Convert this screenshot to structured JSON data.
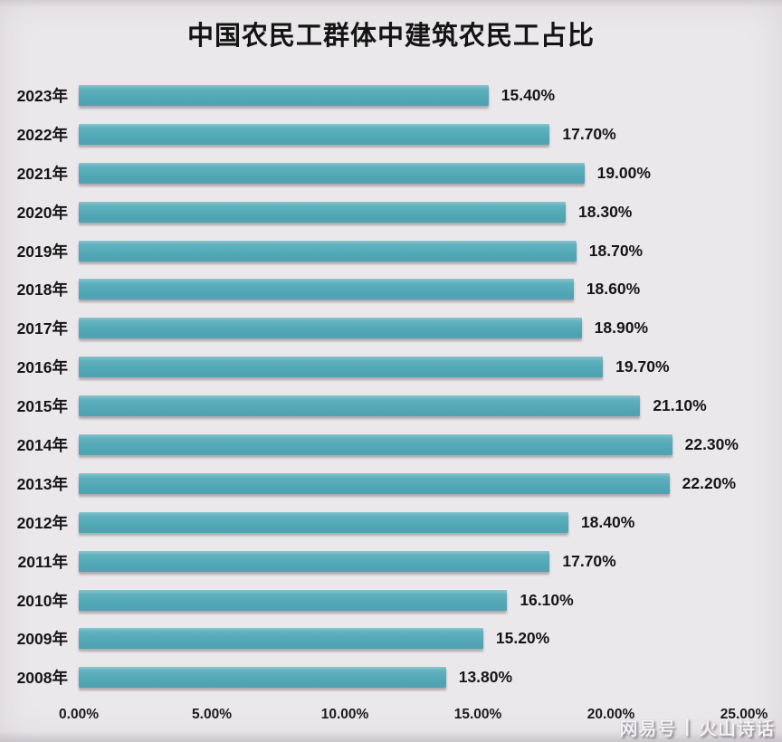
{
  "title": "中国农民工群体中建筑农民工占比",
  "chart_data": {
    "type": "bar",
    "orientation": "horizontal",
    "title": "中国农民工群体中建筑农民工占比",
    "categories": [
      "2023年",
      "2022年",
      "2021年",
      "2020年",
      "2019年",
      "2018年",
      "2017年",
      "2016年",
      "2015年",
      "2014年",
      "2013年",
      "2012年",
      "2011年",
      "2010年",
      "2009年",
      "2008年"
    ],
    "values": [
      15.4,
      17.7,
      19.0,
      18.3,
      18.7,
      18.6,
      18.9,
      19.7,
      21.1,
      22.3,
      22.2,
      18.4,
      17.7,
      16.1,
      15.2,
      13.8
    ],
    "value_labels": [
      "15.40%",
      "17.70%",
      "19.00%",
      "18.30%",
      "18.70%",
      "18.60%",
      "18.90%",
      "19.70%",
      "21.10%",
      "22.30%",
      "22.20%",
      "18.40%",
      "17.70%",
      "16.10%",
      "15.20%",
      "13.80%"
    ],
    "x_ticks": [
      "0.00%",
      "5.00%",
      "10.00%",
      "15.00%",
      "20.00%",
      "25.00%"
    ],
    "xlim": [
      0,
      25
    ],
    "xlabel": "",
    "ylabel": "",
    "grid": false,
    "legend": false,
    "bar_color": "#55aab8",
    "background_color": "#ebe8eb",
    "text_color": "#161616"
  },
  "watermark": {
    "brand": "网易号",
    "separator": "|",
    "account": "火山诗话"
  }
}
